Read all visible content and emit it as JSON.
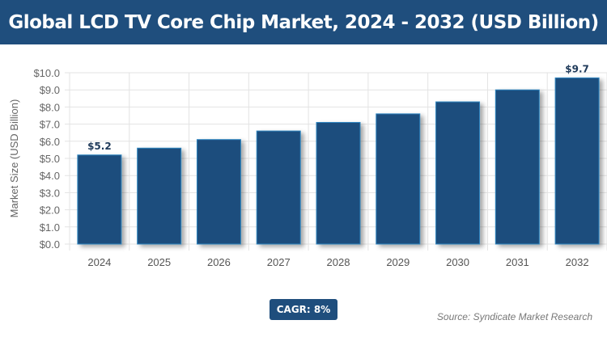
{
  "header": {
    "title": "Global LCD TV Core Chip Market, 2024 - 2032 (USD Billion)"
  },
  "badge": {
    "cagr": "CAGR: 8%"
  },
  "footer": {
    "source": "Source: Syndicate Market Research"
  },
  "colors": {
    "bar": "#1f4e7d",
    "bar_border": "#2e86c1",
    "header": "#1f4e7d"
  },
  "chart_data": {
    "type": "bar",
    "title": "Global LCD TV Core Chip Market, 2024 - 2032 (USD Billion)",
    "xlabel": "",
    "ylabel": "Market Size (USD Billion)",
    "categories": [
      "2024",
      "2025",
      "2026",
      "2027",
      "2028",
      "2029",
      "2030",
      "2031",
      "2032"
    ],
    "values": [
      5.2,
      5.6,
      6.1,
      6.6,
      7.1,
      7.6,
      8.3,
      9.0,
      9.7
    ],
    "data_labels": {
      "0": "$5.2",
      "8": "$9.7"
    },
    "ylim": [
      0,
      10
    ],
    "yticks": [
      "$0.0",
      "$1.0",
      "$2.0",
      "$3.0",
      "$4.0",
      "$5.0",
      "$6.0",
      "$7.0",
      "$8.0",
      "$9.0",
      "$10.0"
    ],
    "grid": true
  }
}
